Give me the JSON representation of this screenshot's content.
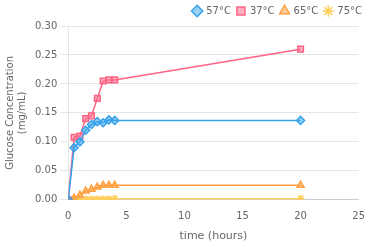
{
  "chart_data": {
    "type": "line",
    "xlabel": "time (hours)",
    "ylabel": "Glucose Concentration\n(mg/mL)",
    "xlim": [
      0,
      25
    ],
    "ylim": [
      0,
      0.3
    ],
    "xticks": [
      0,
      5,
      10,
      15,
      20,
      25
    ],
    "yticks": [
      {
        "value": 0,
        "label": "0.00"
      },
      0.05,
      {
        "value": 0.1,
        "label": "0.10"
      },
      0.15,
      {
        "value": 0.2,
        "label": "0.20"
      },
      0.25,
      {
        "value": 0.3,
        "label": "0.30"
      }
    ],
    "grid": "y",
    "legend": "upper right",
    "series": [
      {
        "name": "57°C",
        "marker": "diamond",
        "x": [
          0,
          0.5,
          1.0,
          1.5,
          2.0,
          2.5,
          3.0,
          3.5,
          4.0,
          20.0
        ],
        "values": [
          0.0,
          0.09,
          0.1,
          0.12,
          0.13,
          0.135,
          0.133,
          0.138,
          0.137,
          0.137
        ]
      },
      {
        "name": "37°C",
        "marker": "square",
        "x": [
          0,
          0.5,
          1.0,
          1.5,
          2.0,
          2.5,
          3.0,
          3.5,
          4.0,
          20.0
        ],
        "values": [
          0.0,
          0.108,
          0.11,
          0.14,
          0.145,
          0.175,
          0.205,
          0.207,
          0.207,
          0.26
        ]
      },
      {
        "name": "65°C",
        "marker": "triangle",
        "x": [
          0,
          0.5,
          1.0,
          1.5,
          2.0,
          2.5,
          3.0,
          3.5,
          4.0,
          20.0
        ],
        "values": [
          0.0,
          0.003,
          0.008,
          0.015,
          0.018,
          0.022,
          0.025,
          0.025,
          0.025,
          0.025
        ]
      },
      {
        "name": "75°C",
        "marker": "star",
        "x": [
          0,
          0.5,
          1.0,
          1.5,
          2.0,
          2.5,
          3.0,
          3.5,
          4.0,
          20.0
        ],
        "values": [
          0.0,
          0.0,
          0.0,
          0.001,
          0.001,
          0.001,
          0.001,
          0.001,
          0.002,
          0.002
        ]
      }
    ]
  }
}
